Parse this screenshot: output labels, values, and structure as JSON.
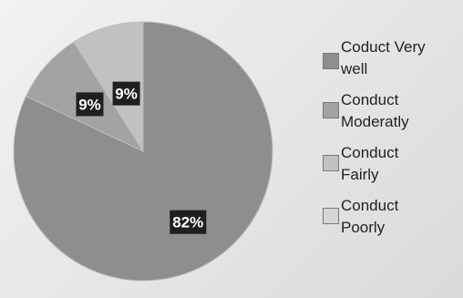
{
  "chart_data": {
    "type": "pie",
    "categories": [
      "Coduct Very well",
      "Conduct Moderatly",
      "Conduct Fairly",
      "Conduct Poorly"
    ],
    "values": [
      82,
      9,
      9,
      0
    ],
    "data_labels": [
      "82%",
      "9%",
      "9%",
      ""
    ],
    "legend_lines": [
      [
        "Coduct Very",
        "well"
      ],
      [
        "Conduct",
        "Moderatly"
      ],
      [
        "Conduct",
        "Fairly"
      ],
      [
        "Conduct",
        "Poorly"
      ]
    ],
    "colors": [
      "#8e8e8e",
      "#a3a3a3",
      "#c1c1c1",
      "#d6d6d6"
    ],
    "legend_placement": "right"
  }
}
